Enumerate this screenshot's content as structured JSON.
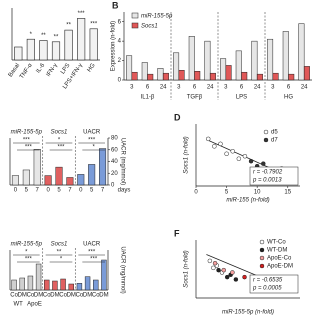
{
  "panel_a": {
    "categories": [
      "Basal",
      "TNF-α",
      "IL-6",
      "IFN-γ",
      "LPS",
      "LPS+IFN-γ",
      "HG"
    ],
    "values": [
      1,
      1.6,
      1.5,
      1.4,
      2.3,
      3.2,
      2.4
    ],
    "stars": [
      null,
      "*",
      "**",
      "**",
      "**",
      "***",
      "***"
    ],
    "ylim": [
      0,
      4
    ],
    "color": "#f2f2f2"
  },
  "panel_b": {
    "label": "B",
    "ylabel": "Expression (n-fold)",
    "ylim": [
      0,
      7
    ],
    "yticks": [
      0,
      2,
      4,
      6
    ],
    "groups": [
      "IL1-β",
      "TGFβ",
      "LPS",
      "HG"
    ],
    "times": [
      "3",
      "6",
      "24"
    ],
    "series": [
      {
        "name": "miR-155-5p",
        "color": "#e6e6e6",
        "values": [
          2.5,
          1.8,
          1.2,
          2.8,
          4.5,
          4.0,
          2.2,
          3.0,
          4.0,
          4.2,
          5.0,
          5.8
        ]
      },
      {
        "name": "Socs1",
        "color": "#e05858",
        "values": [
          0.8,
          0.6,
          0.7,
          1.0,
          0.9,
          0.7,
          1.5,
          0.8,
          0.6,
          0.7,
          0.6,
          1.4
        ]
      }
    ]
  },
  "panel_c": {
    "ylim": [
      0,
      5
    ],
    "y2lim": [
      0,
      80
    ],
    "y2ticks": [
      0,
      20,
      40,
      60,
      80
    ],
    "y2label": "UACR (mg/mmol)",
    "days": [
      "0",
      "5",
      "7"
    ],
    "days_label": "days",
    "sections": [
      {
        "title": "miR-155-5p",
        "color": "#e6e6e6",
        "values": [
          1,
          1.6,
          3.8
        ],
        "stars": [
          "***",
          "***"
        ]
      },
      {
        "title": "Socs1",
        "color": "#e06060",
        "values": [
          1,
          1.9,
          0.8
        ],
        "stars": [
          "*",
          "***"
        ]
      },
      {
        "title": "UACR",
        "color": "#7a9bd8",
        "axis": "y2",
        "values": [
          18,
          35,
          62
        ],
        "stars": [
          "***",
          "*"
        ]
      }
    ]
  },
  "panel_d": {
    "label": "D",
    "xlabel": "miR-155 (n-fold)",
    "ylabel": "Socs1 (n-fold)",
    "xlim": [
      0,
      17
    ],
    "xticks": [
      0,
      5,
      10,
      15
    ],
    "ylim": [
      0,
      2.5
    ],
    "series": [
      {
        "name": "d5",
        "color": "#ffffff",
        "x": [
          2,
          3,
          4,
          5,
          6,
          7,
          8
        ],
        "y": [
          1.9,
          1.6,
          1.7,
          1.3,
          1.4,
          1.1,
          1.2
        ]
      },
      {
        "name": "d7",
        "color": "#333333",
        "x": [
          9,
          10,
          11,
          12,
          13,
          14
        ],
        "y": [
          1.0,
          0.8,
          0.9,
          0.6,
          0.5,
          0.7
        ]
      }
    ],
    "r": "r = -0.7902",
    "p": "p = 0.0013"
  },
  "panel_e": {
    "ylim": [
      0,
      4
    ],
    "y2lim": [
      0,
      60
    ],
    "y2label": "UACR (mg/mmol)",
    "conditions": [
      "Co",
      "DM",
      "Co",
      "DM"
    ],
    "genotypes": [
      "WT",
      "ApoE"
    ],
    "sections": [
      {
        "title": "miR-155-5p",
        "color": "#d0d0d0",
        "values": [
          1,
          1.2,
          1.4,
          2.6
        ],
        "stars": [
          "*",
          "***"
        ]
      },
      {
        "title": "Socs1",
        "color": "#e06060",
        "values": [
          1,
          0.9,
          1.1,
          0.6
        ],
        "stars": [
          "**",
          "*"
        ]
      },
      {
        "title": "UACR",
        "color": "#7a9bd8",
        "axis": "y2",
        "values": [
          10,
          20,
          15,
          45
        ],
        "stars": [
          "***",
          "***"
        ]
      }
    ]
  },
  "panel_f": {
    "label": "F",
    "xlabel": "miR-155-5p (n-fold)",
    "ylabel": "Socs1 (n-fold)",
    "xlim": [
      0,
      6
    ],
    "ylim": [
      0,
      2.5
    ],
    "series": [
      {
        "name": "WT-Co",
        "color": "#ffffff",
        "x": [
          0.8,
          1.0,
          1.2,
          1.5
        ],
        "y": [
          1.6,
          1.3,
          1.4,
          1.1
        ]
      },
      {
        "name": "WT-DM",
        "color": "#222222",
        "x": [
          1.3,
          1.8,
          2.0,
          2.3
        ],
        "y": [
          1.2,
          0.9,
          1.0,
          0.8
        ]
      },
      {
        "name": "ApoE-Co",
        "color": "#f4a0a0",
        "x": [
          1.1,
          1.6,
          2.1
        ],
        "y": [
          1.5,
          1.2,
          1.1
        ]
      },
      {
        "name": "ApoE-DM",
        "color": "#d42020",
        "x": [
          2.8,
          3.5,
          4.2,
          5.0
        ],
        "y": [
          0.9,
          0.7,
          0.5,
          0.4
        ]
      }
    ],
    "r": "r = -0.6535",
    "p": "p = 0.0005"
  }
}
